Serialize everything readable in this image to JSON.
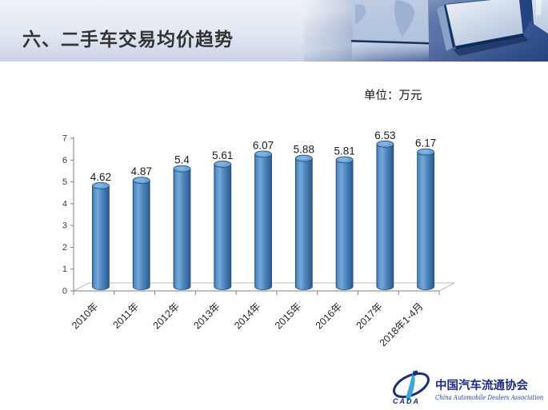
{
  "header": {
    "title": "六、二手车交易均价趋势"
  },
  "unit_label": "单位：万元",
  "chart_data": {
    "type": "bar",
    "subtype": "3d-cylinder",
    "categories": [
      "2010年",
      "2011年",
      "2012年",
      "2013年",
      "2014年",
      "2015年",
      "2016年",
      "2017年",
      "2018年1-4月"
    ],
    "values": [
      4.62,
      4.87,
      5.4,
      5.61,
      6.07,
      5.88,
      5.81,
      6.53,
      6.17
    ],
    "title": "",
    "xlabel": "",
    "ylabel": "",
    "ylim": [
      0,
      7
    ],
    "ytick_step": 1,
    "bar_color": "#4f8ac5",
    "grid": false,
    "legend": false
  },
  "footer": {
    "logo_cn": "中国汽车流通协会",
    "logo_en": "China Automobile Dealers Association",
    "logo_acronym": "CADA"
  }
}
